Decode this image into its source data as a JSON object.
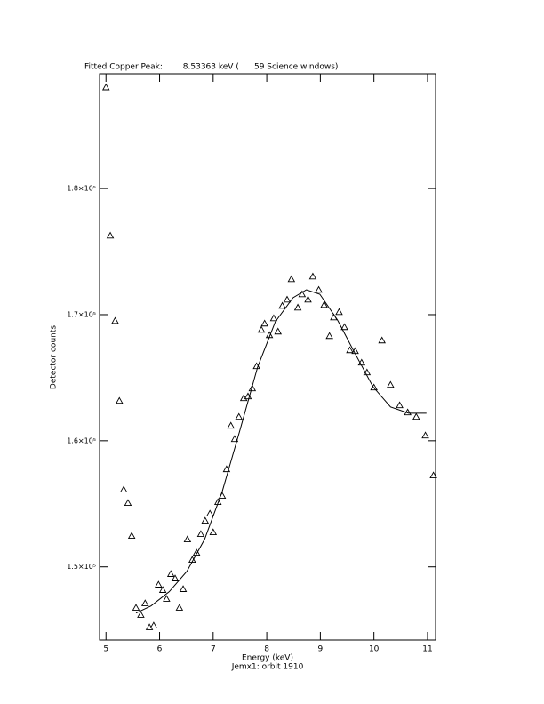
{
  "chart_data": {
    "type": "scatter",
    "title": "Fitted Copper Peak:        8.53363 keV (      59 Science windows)",
    "xlabel": "Energy (keV)",
    "subtitle": "Jemx1: orbit 1910",
    "ylabel": "Detector counts",
    "color": "#000000",
    "xlim": [
      4.88,
      11.15
    ],
    "ylim": [
      144200,
      189100
    ],
    "xticks": [
      5,
      6,
      7,
      8,
      9,
      10,
      11
    ],
    "yticks": [
      {
        "value": 150000,
        "label": "1.5×10⁵"
      },
      {
        "value": 160000,
        "label": "1.6×10⁵"
      },
      {
        "value": 170000,
        "label": "1.7×10⁵"
      },
      {
        "value": 180000,
        "label": "1.8×10⁵"
      }
    ],
    "x": [
      5.0,
      5.08,
      5.17,
      5.25,
      5.33,
      5.41,
      5.48,
      5.56,
      5.65,
      5.73,
      5.81,
      5.89,
      5.98,
      6.06,
      6.13,
      6.21,
      6.29,
      6.37,
      6.44,
      6.52,
      6.61,
      6.69,
      6.77,
      6.85,
      6.94,
      7.0,
      7.09,
      7.17,
      7.25,
      7.33,
      7.4,
      7.48,
      7.57,
      7.65,
      7.73,
      7.81,
      7.9,
      7.96,
      8.05,
      8.13,
      8.21,
      8.29,
      8.38,
      8.46,
      8.58,
      8.66,
      8.77,
      8.86,
      8.97,
      9.07,
      9.17,
      9.25,
      9.35,
      9.45,
      9.55,
      9.65,
      9.77,
      9.87,
      10.0,
      10.15,
      10.31,
      10.48,
      10.63,
      10.79,
      10.96,
      11.11
    ],
    "values": [
      188028,
      176268,
      169507,
      163169,
      156127,
      155070,
      152465,
      146761,
      146197,
      147113,
      145211,
      145352,
      148592,
      148169,
      147465,
      149437,
      149085,
      146761,
      148239,
      152183,
      150563,
      151127,
      152606,
      153662,
      154225,
      152746,
      155141,
      155634,
      157746,
      161197,
      160141,
      161901,
      163380,
      163521,
      164155,
      165915,
      168803,
      169296,
      168380,
      169718,
      168662,
      170704,
      171197,
      172817,
      170563,
      171620,
      171197,
      173028,
      171972,
      170775,
      168310,
      169789,
      170211,
      169014,
      167183,
      167113,
      166197,
      165423,
      164225,
      167958,
      164437,
      162817,
      162254,
      161901,
      160423,
      157254
    ],
    "fit": {
      "x": [
        5.56,
        5.84,
        6.18,
        6.51,
        6.84,
        7.17,
        7.5,
        7.83,
        8.16,
        8.49,
        8.74,
        8.99,
        9.32,
        9.65,
        9.98,
        10.31,
        10.65,
        10.98
      ],
      "values": [
        146338,
        146901,
        148028,
        149648,
        152183,
        155986,
        160845,
        165845,
        169437,
        171338,
        171972,
        171620,
        169577,
        166901,
        164296,
        162676,
        162183,
        162183
      ]
    }
  }
}
